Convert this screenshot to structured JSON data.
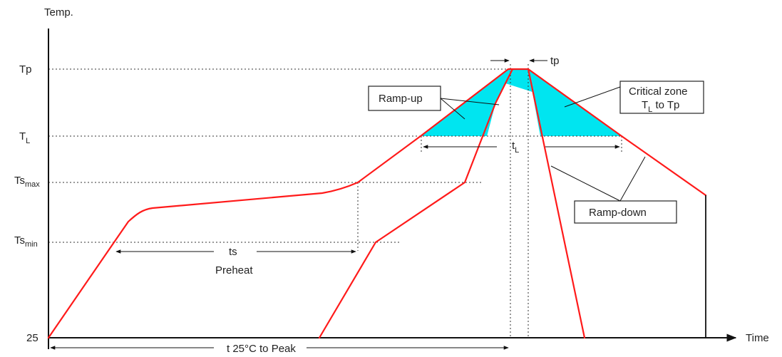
{
  "axes": {
    "y_title": "Temp.",
    "x_title": "Time"
  },
  "levels": {
    "tp": "Tp",
    "tl_main": "T",
    "tl_sub": "L",
    "tsmax_main": "Ts",
    "tsmax_sub": "max",
    "tsmin_main": "Ts",
    "tsmin_sub": "min",
    "base": "25"
  },
  "annotations": {
    "tp_time": "tp",
    "tl_time_main": "t",
    "tl_time_sub": "L",
    "ts_time": "ts",
    "preheat": "Preheat",
    "t25_to_peak": "t 25°C to Peak"
  },
  "callouts": {
    "ramp_up": "Ramp-up",
    "critical_line1": "Critical zone",
    "critical_line2_main": "T",
    "critical_line2_sub": "L",
    "critical_line2_rest": " to Tp",
    "ramp_down": "Ramp-down"
  },
  "colors": {
    "profile": "#ff1a1a",
    "critical_zone": "#00e5f0"
  }
}
